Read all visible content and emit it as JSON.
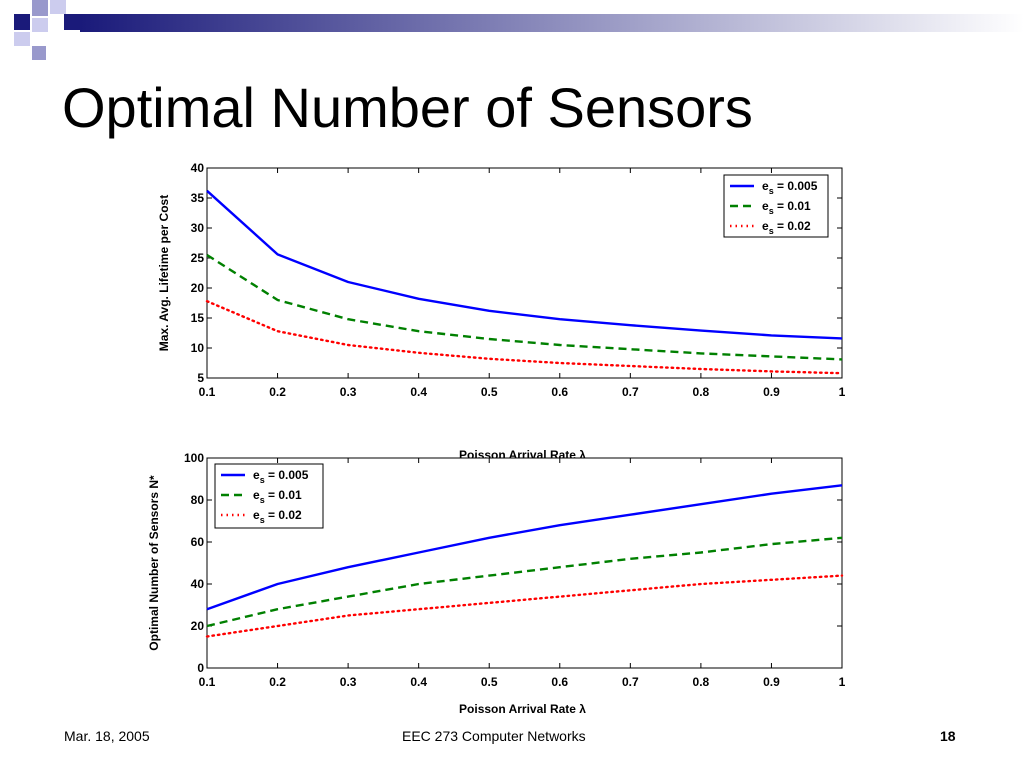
{
  "slide": {
    "title": "Optimal Number of Sensors"
  },
  "footer": {
    "date": "Mar. 18, 2005",
    "course": "EEC 273 Computer Networks",
    "page": "18"
  },
  "colors": {
    "header_dark": "#1a1a7a",
    "header_light": "#9999cc"
  },
  "chart_data": [
    {
      "type": "line",
      "title": "",
      "xlabel": "Poisson Arrival Rate λ",
      "ylabel": "Max. Avg. Lifetime per Cost",
      "xlim": [
        0.1,
        1
      ],
      "ylim": [
        5,
        40
      ],
      "x_ticks": [
        "0.1",
        "0.2",
        "0.3",
        "0.4",
        "0.5",
        "0.6",
        "0.7",
        "0.8",
        "0.9",
        "1"
      ],
      "y_ticks": [
        "5",
        "10",
        "15",
        "20",
        "25",
        "30",
        "35",
        "40"
      ],
      "legend_position": "top-right",
      "grid": false,
      "x": [
        0.1,
        0.2,
        0.3,
        0.4,
        0.5,
        0.6,
        0.7,
        0.8,
        0.9,
        1.0
      ],
      "series": [
        {
          "name": "e_s = 0.005",
          "label_main": "e",
          "label_sub": "s",
          "label_rest": " = 0.005",
          "color": "#0000ff",
          "dash": "solid",
          "values": [
            36.2,
            25.6,
            21.0,
            18.2,
            16.2,
            14.8,
            13.8,
            12.9,
            12.1,
            11.6
          ]
        },
        {
          "name": "e_s = 0.01",
          "label_main": "e",
          "label_sub": "s",
          "label_rest": " = 0.01",
          "color": "#008000",
          "dash": "dashed",
          "values": [
            25.5,
            18.0,
            14.8,
            12.8,
            11.5,
            10.5,
            9.8,
            9.1,
            8.6,
            8.1
          ]
        },
        {
          "name": "e_s = 0.02",
          "label_main": "e",
          "label_sub": "s",
          "label_rest": " = 0.02",
          "color": "#ff0000",
          "dash": "dotted",
          "values": [
            17.8,
            12.8,
            10.5,
            9.2,
            8.2,
            7.5,
            7.0,
            6.5,
            6.1,
            5.8
          ]
        }
      ]
    },
    {
      "type": "line",
      "title": "",
      "xlabel": "Poisson Arrival Rate λ",
      "ylabel": "Optimal Number of Sensors N*",
      "xlim": [
        0.1,
        1
      ],
      "ylim": [
        0,
        100
      ],
      "x_ticks": [
        "0.1",
        "0.2",
        "0.3",
        "0.4",
        "0.5",
        "0.6",
        "0.7",
        "0.8",
        "0.9",
        "1"
      ],
      "y_ticks": [
        "0",
        "20",
        "40",
        "60",
        "80",
        "100"
      ],
      "legend_position": "top-left",
      "grid": false,
      "x": [
        0.1,
        0.2,
        0.3,
        0.4,
        0.5,
        0.6,
        0.7,
        0.8,
        0.9,
        1.0
      ],
      "series": [
        {
          "name": "e_s = 0.005",
          "label_main": "e",
          "label_sub": "s",
          "label_rest": " = 0.005",
          "color": "#0000ff",
          "dash": "solid",
          "values": [
            28,
            40,
            48,
            55,
            62,
            68,
            73,
            78,
            83,
            87
          ]
        },
        {
          "name": "e_s = 0.01",
          "label_main": "e",
          "label_sub": "s",
          "label_rest": " = 0.01",
          "color": "#008000",
          "dash": "dashed",
          "values": [
            20,
            28,
            34,
            40,
            44,
            48,
            52,
            55,
            59,
            62
          ]
        },
        {
          "name": "e_s = 0.02",
          "label_main": "e",
          "label_sub": "s",
          "label_rest": " = 0.02",
          "color": "#ff0000",
          "dash": "dotted",
          "values": [
            15,
            20,
            25,
            28,
            31,
            34,
            37,
            40,
            42,
            44
          ]
        }
      ]
    }
  ]
}
